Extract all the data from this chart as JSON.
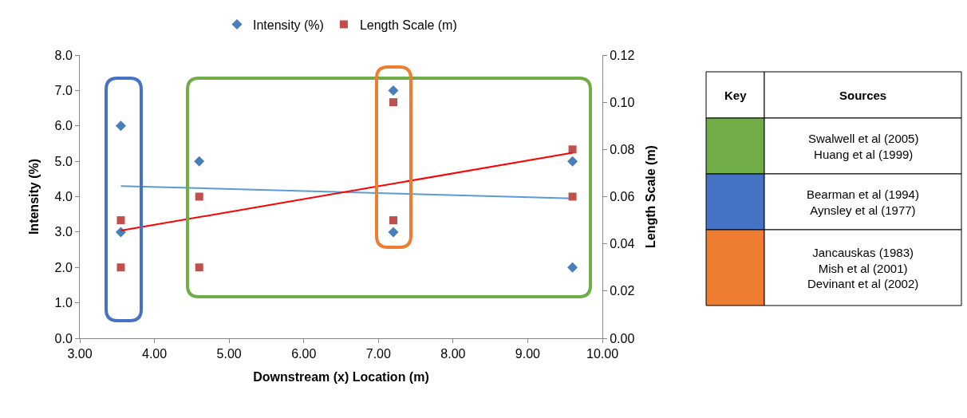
{
  "chart_data": [
    {
      "type": "scatter",
      "xlabel": "Downstream (x) Location (m)",
      "ylabel": "Intensity (%)",
      "y2label": "Length Scale (m)",
      "xlim": [
        3,
        10
      ],
      "xticks": [
        {
          "value": 3,
          "label": "3.00"
        },
        {
          "value": 4,
          "label": "4.00"
        },
        {
          "value": 5,
          "label": "5.00"
        },
        {
          "value": 6,
          "label": "6.00"
        },
        {
          "value": 7,
          "label": "7.00"
        },
        {
          "value": 8,
          "label": "8.00"
        },
        {
          "value": 9,
          "label": "9.00"
        },
        {
          "value": 10,
          "label": "10.00"
        }
      ],
      "ylim": [
        0,
        8
      ],
      "yticks": [
        {
          "value": 0,
          "label": "0.0"
        },
        {
          "value": 1,
          "label": "1.0"
        },
        {
          "value": 2,
          "label": "2.0"
        },
        {
          "value": 3,
          "label": "3.0"
        },
        {
          "value": 4,
          "label": "4.0"
        },
        {
          "value": 5,
          "label": "5.0"
        },
        {
          "value": 6,
          "label": "6.0"
        },
        {
          "value": 7,
          "label": "7.0"
        },
        {
          "value": 8,
          "label": "8.0"
        }
      ],
      "y2lim": [
        0,
        0.12
      ],
      "y2ticks": [
        {
          "value": 0,
          "label": "0.00"
        },
        {
          "value": 0.02,
          "label": "0.02"
        },
        {
          "value": 0.04,
          "label": "0.04"
        },
        {
          "value": 0.06,
          "label": "0.06"
        },
        {
          "value": 0.08,
          "label": "0.08"
        },
        {
          "value": 0.1,
          "label": "0.10"
        },
        {
          "value": 0.12,
          "label": "0.12"
        }
      ],
      "legend": "top",
      "series": [
        {
          "name": "Intensity (%)",
          "color": "#4a7ebb",
          "marker": "diamond",
          "x": [
            3.55,
            3.55,
            4.6,
            7.2,
            7.2,
            9.6,
            9.6
          ],
          "values": [
            6,
            3,
            5,
            7,
            3,
            5,
            2
          ]
        },
        {
          "name": "Length Scale (m)",
          "color": "#c0504d",
          "marker": "square",
          "axis": "y2",
          "x": [
            3.55,
            3.55,
            4.6,
            4.6,
            7.2,
            7.2,
            9.6,
            9.6
          ],
          "values": [
            0.05,
            0.03,
            0.06,
            0.03,
            0.1,
            0.05,
            0.08,
            0.06
          ]
        },
        {
          "type": "line",
          "color": "#5b9bd5",
          "x": [
            3.55,
            9.6
          ],
          "values": [
            4.3,
            3.95
          ]
        },
        {
          "type": "line",
          "color": "#ff0000",
          "axis": "y2",
          "x": [
            3.55,
            9.6
          ],
          "values": [
            0.0456,
            0.0786
          ]
        }
      ]
    },
    {
      "type": "other",
      "annotations": [
        "Key",
        "Sources"
      ],
      "categories": [
        "Swalwell et al (2005)\nHuang et al (1999)",
        "Bearman et al (1994)\nAynsley et al (1977)",
        "Jancauskas (1983)\nMish et al (2001)\nDevinant et al (2002)"
      ]
    }
  ]
}
